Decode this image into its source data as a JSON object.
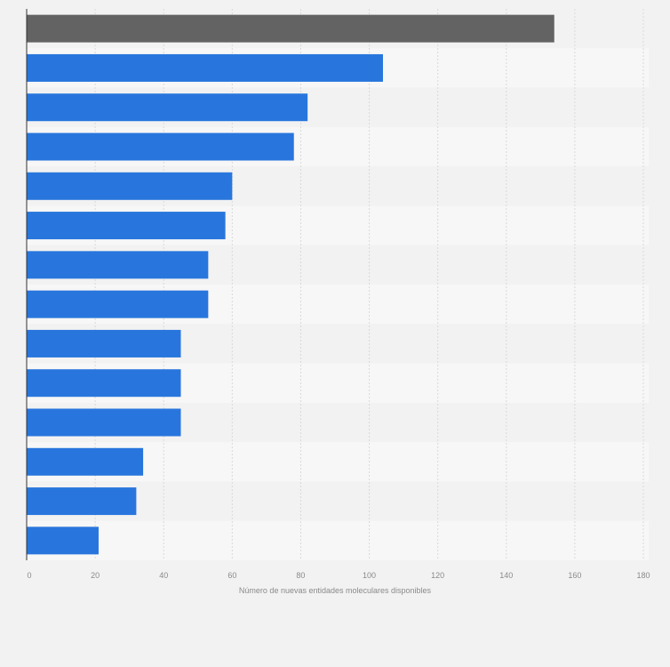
{
  "chart_data": {
    "type": "bar",
    "orientation": "horizontal",
    "title": "",
    "xlabel": "Número de nuevas entidades moleculares disponibles",
    "ylabel": "",
    "xlim": [
      0,
      180
    ],
    "xticks": [
      0,
      20,
      40,
      60,
      80,
      100,
      120,
      140,
      160,
      180
    ],
    "values": [
      154,
      104,
      82,
      78,
      60,
      58,
      53,
      53,
      45,
      45,
      45,
      34,
      32,
      21
    ],
    "highlight_index": 0,
    "grid": true,
    "colors": {
      "bar": "#2876dd",
      "highlight": "#636363",
      "row_light": "#f7f7f7",
      "row_dark": "#f2f2f2",
      "grid": "#d9d9d9",
      "axis": "#333333"
    }
  }
}
